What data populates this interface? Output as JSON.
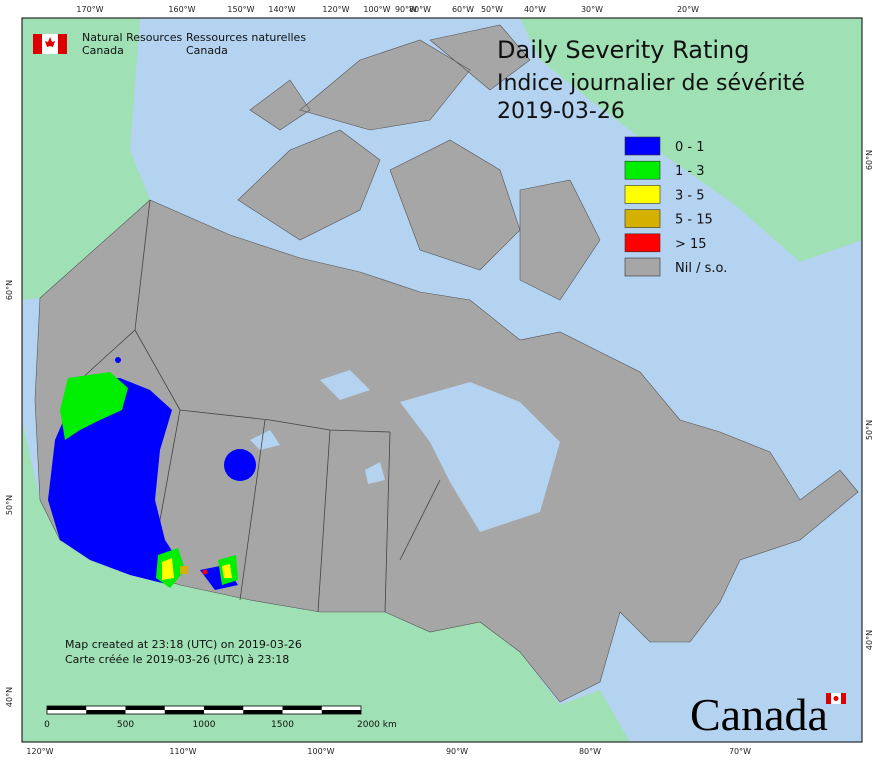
{
  "header": {
    "logo_en": [
      "Natural Resources",
      "Canada"
    ],
    "logo_fr": [
      "Ressources naturelles",
      "Canada"
    ]
  },
  "title": {
    "lines": [
      "Daily Severity Rating",
      "Indice journalier de sévérité",
      "2019-03-26"
    ]
  },
  "legend": {
    "items": [
      {
        "label": "0 - 1",
        "color": "#0000ff"
      },
      {
        "label": "1 - 3",
        "color": "#00ee00"
      },
      {
        "label": "3 - 5",
        "color": "#ffff00"
      },
      {
        "label": "5 - 15",
        "color": "#d4b000"
      },
      {
        "label": "> 15",
        "color": "#ff0000"
      },
      {
        "label": "Nil / s.o.",
        "color": "#a6a6a6"
      }
    ]
  },
  "graticule": {
    "top": [
      "170°W",
      "160°W",
      "150°W",
      "140°W",
      "120°W",
      "100°W",
      "90°W",
      "80°W",
      "60°W",
      "50°W",
      "40°W",
      "30°W",
      "20°W"
    ],
    "bottom": [
      "120°W",
      "110°W",
      "100°W",
      "90°W",
      "80°W",
      "70°W"
    ],
    "left": [
      "60°N",
      "50°N",
      "40°N"
    ],
    "right": [
      "60°N",
      "50°N",
      "40°N"
    ]
  },
  "footer": {
    "created": [
      "Map created at 23:18 (UTC) on 2019-03-26",
      "Carte créée le 2019-03-26 (UTC) à 23:18"
    ],
    "scale_bar": [
      "0",
      "500",
      "1000",
      "1500",
      "2000 km"
    ],
    "wordmark": "Canada"
  }
}
